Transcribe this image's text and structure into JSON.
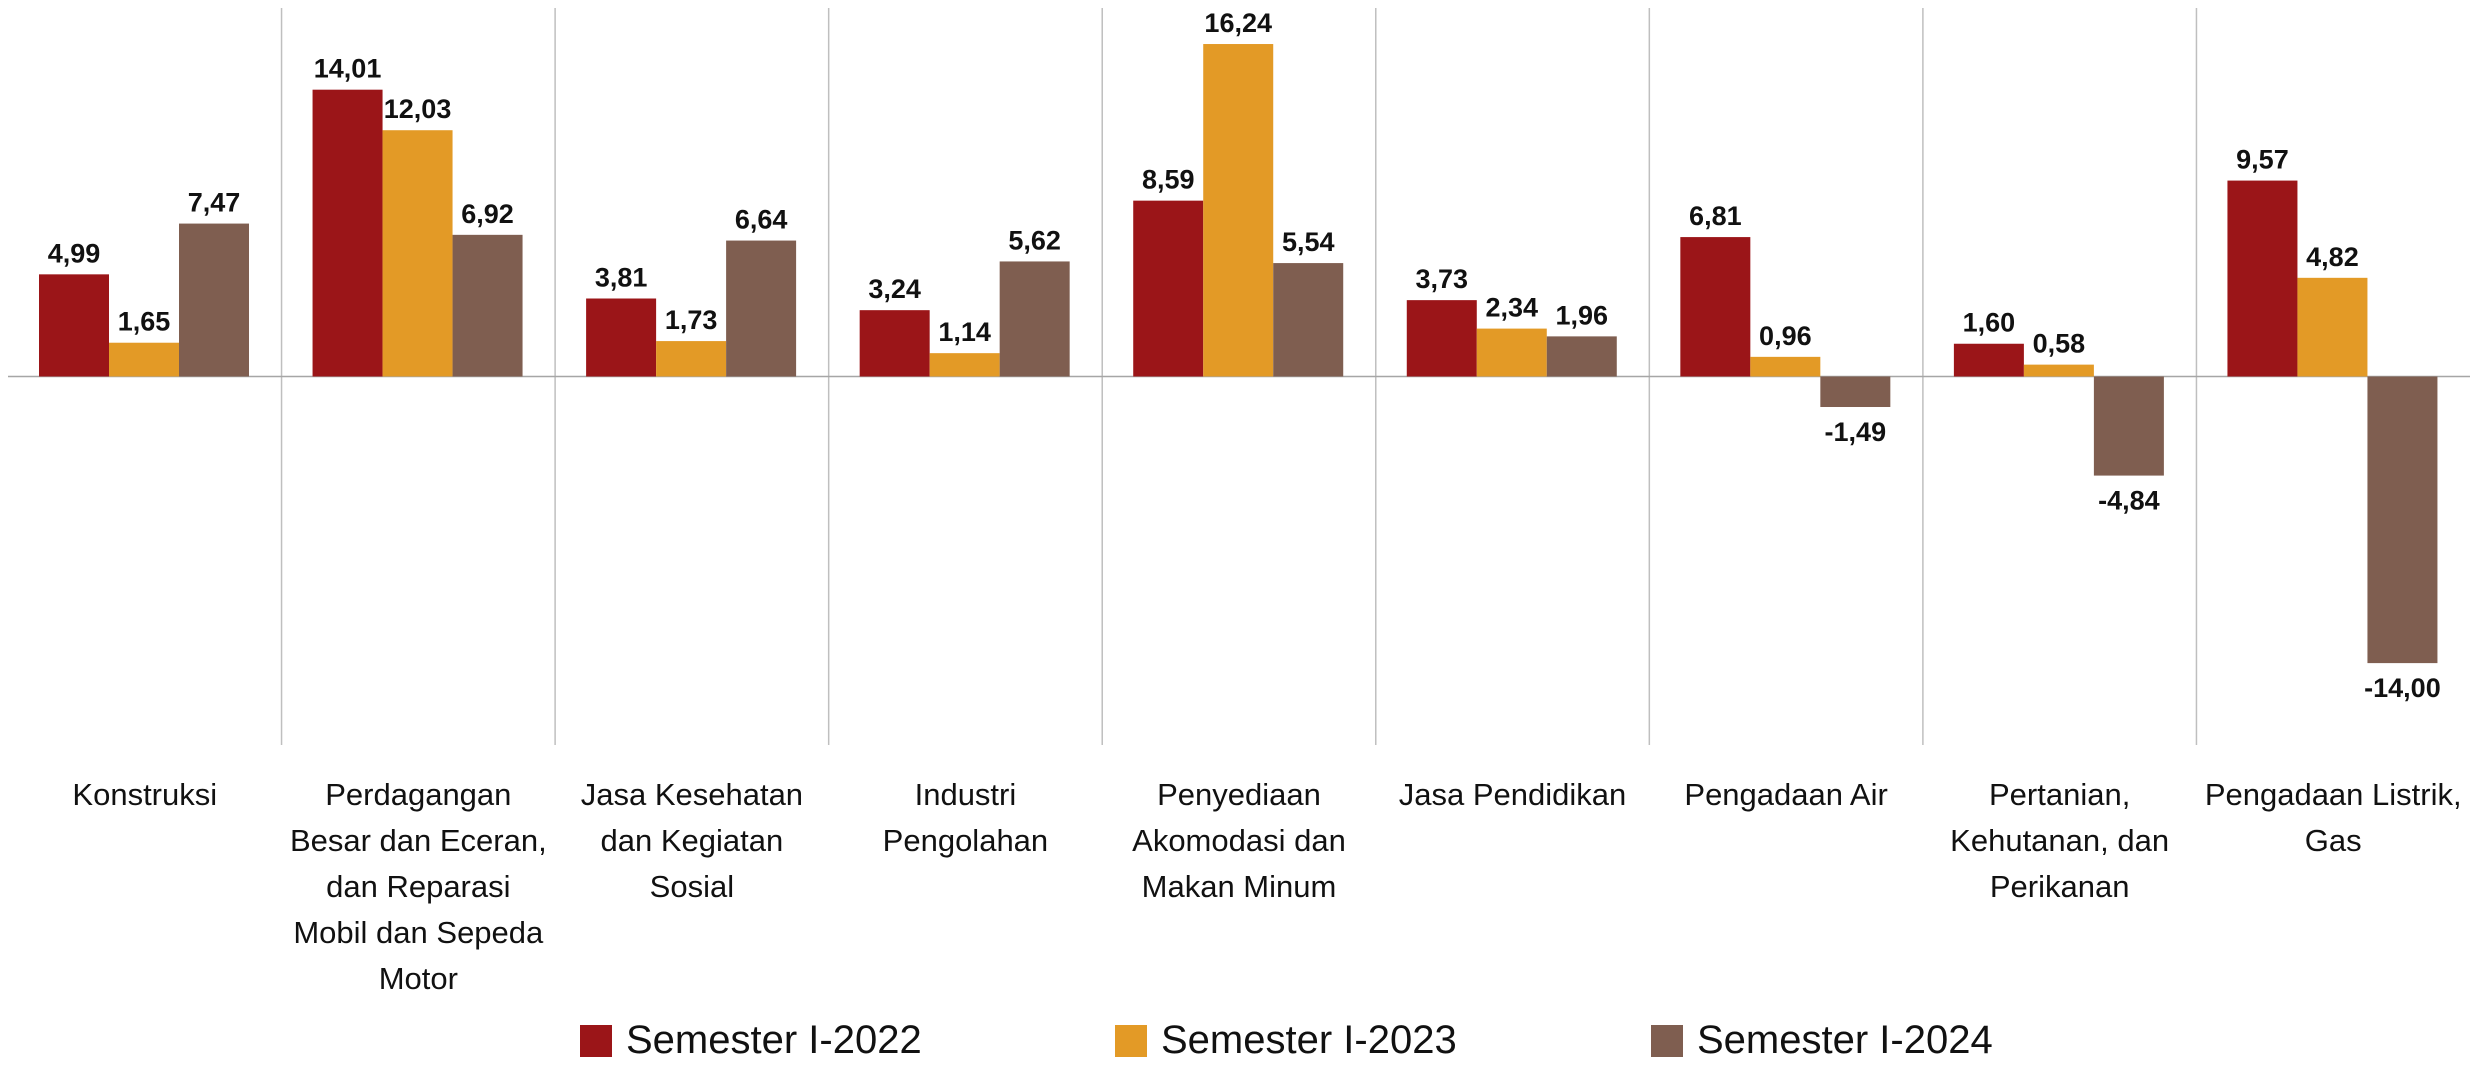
{
  "chart_data": {
    "type": "bar",
    "categories": [
      "Konstruksi",
      "Perdagangan Besar dan Eceran, dan Reparasi Mobil dan Sepeda Motor",
      "Jasa Kesehatan dan Kegiatan Sosial",
      "Industri Pengolahan",
      "Penyediaan Akomodasi dan Makan Minum",
      "Jasa Pendidikan",
      "Pengadaan Air",
      "Pertanian, Kehutanan, dan Perikanan",
      "Pengadaan Listrik, Gas"
    ],
    "series": [
      {
        "name": "Semester I-2022",
        "color": "#9b1518",
        "values": [
          4.99,
          14.01,
          3.81,
          3.24,
          8.59,
          3.73,
          6.81,
          1.6,
          9.57
        ],
        "value_labels": [
          "4,99",
          "14,01",
          "3,81",
          "3,24",
          "8,59",
          "3,73",
          "6,81",
          "1,60",
          "9,57"
        ]
      },
      {
        "name": "Semester I-2023",
        "color": "#e39a26",
        "values": [
          1.65,
          12.03,
          1.73,
          1.14,
          16.24,
          2.34,
          0.96,
          0.58,
          4.82
        ],
        "value_labels": [
          "1,65",
          "12,03",
          "1,73",
          "1,14",
          "16,24",
          "2,34",
          "0,96",
          "0,58",
          "4,82"
        ]
      },
      {
        "name": "Semester I-2024",
        "color": "#7f5e50",
        "values": [
          7.47,
          6.92,
          6.64,
          5.62,
          5.54,
          1.96,
          -1.49,
          -4.84,
          -14.0
        ],
        "value_labels": [
          "7,47",
          "6,92",
          "6,64",
          "5,62",
          "5,54",
          "1,96",
          "-1,49",
          "-4,84",
          "-14,00"
        ]
      }
    ],
    "ylim": [
      -18,
      18
    ],
    "legend": "bottom"
  }
}
